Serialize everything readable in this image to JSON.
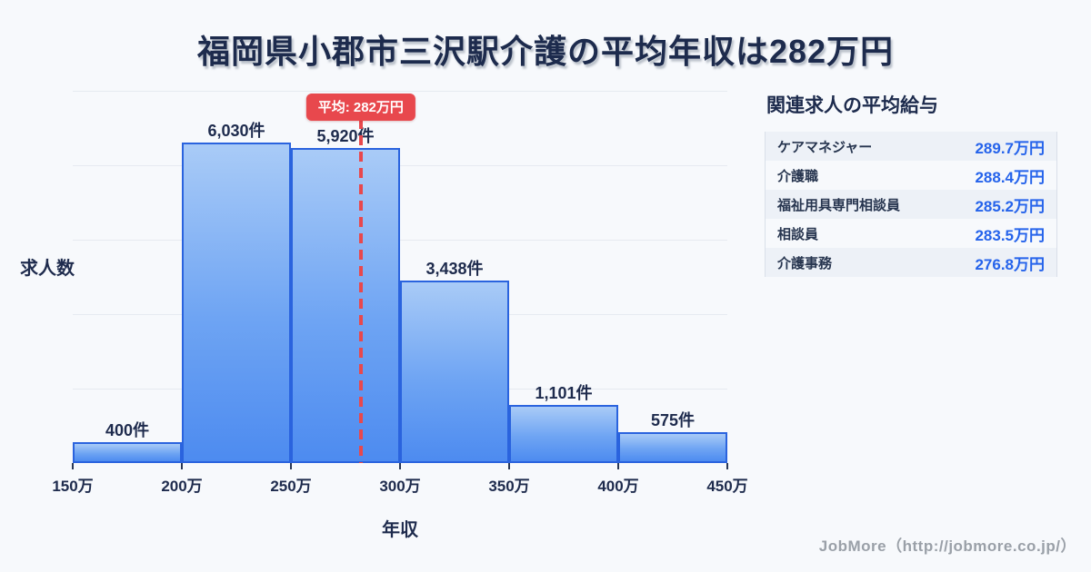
{
  "title": "福岡県小郡市三沢駅介護の平均年収は282万円",
  "chart_data": {
    "type": "bar",
    "subtype": "histogram",
    "xlabel": "年収",
    "ylabel": "求人数",
    "bin_edges": [
      150,
      200,
      250,
      300,
      350,
      400,
      450
    ],
    "bin_edge_labels": [
      "150万",
      "200万",
      "250万",
      "300万",
      "350万",
      "400万",
      "450万"
    ],
    "values": [
      400,
      6030,
      5920,
      3438,
      1101,
      575
    ],
    "value_labels": [
      "400件",
      "6,030件",
      "5,920件",
      "3,438件",
      "1,101件",
      "575件"
    ],
    "ylim": [
      0,
      7000
    ],
    "grid": "horizontal",
    "gridline_step": 1400,
    "average": {
      "value": 282,
      "badge_label": "平均: 282万円"
    },
    "legend": "none"
  },
  "side_panel": {
    "title": "関連求人の平均給与",
    "rows": [
      {
        "label": "ケアマネジャー",
        "value": "289.7万円"
      },
      {
        "label": "介護職",
        "value": "288.4万円"
      },
      {
        "label": "福祉用具専門相談員",
        "value": "285.2万円"
      },
      {
        "label": "相談員",
        "value": "283.5万円"
      },
      {
        "label": "介護事務",
        "value": "276.8万円"
      }
    ]
  },
  "footer": {
    "credit": "JobMore（http://jobmore.co.jp/）"
  },
  "colors": {
    "background": "#f7f9fc",
    "title_text": "#1d2b4d",
    "bar_fill_top": "#a9cbf7",
    "bar_fill_bottom": "#4d8bf0",
    "bar_border": "#2a63de",
    "gridline": "#e6eaf1",
    "average_red": "#e8484d",
    "value_blue": "#2563eb",
    "row_alt_bg": "#edf1f7",
    "footer_gray": "#9aa0a8"
  }
}
